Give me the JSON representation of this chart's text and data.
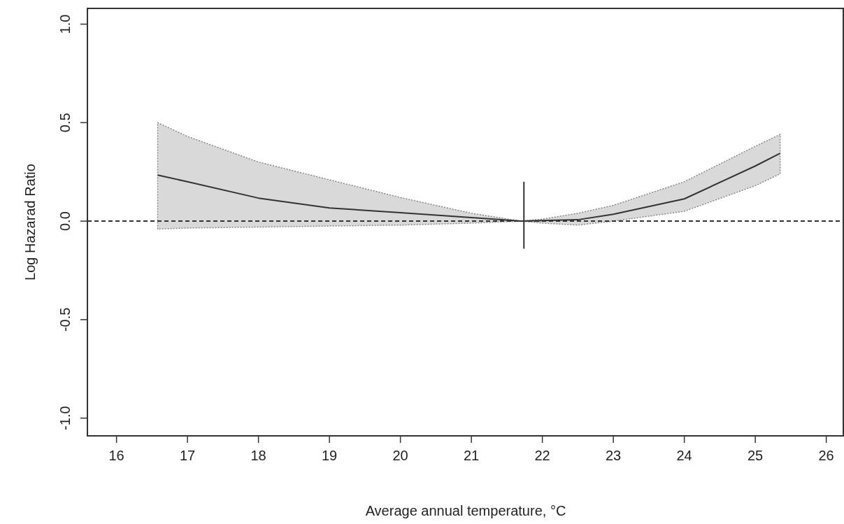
{
  "chart_data": {
    "type": "line",
    "xlabel": "Average annual temperature, °C",
    "ylabel": "Log Hazarad Ratio",
    "xlim": [
      15.59,
      26.24
    ],
    "ylim": [
      -1.09,
      1.08
    ],
    "xticks": [
      16,
      17,
      18,
      19,
      20,
      21,
      22,
      23,
      24,
      25,
      26
    ],
    "yticks": [
      {
        "value": -1,
        "label": "-1.0"
      },
      -0.5,
      {
        "value": 0,
        "label": "0.0"
      },
      0.5,
      {
        "value": 1,
        "label": "1.0"
      }
    ],
    "grid": false,
    "marker": "none",
    "line_style": "solid",
    "ref_lines": [
      {
        "axis": "y",
        "value": 0,
        "line_style": "dashed",
        "color": "#333333"
      }
    ],
    "series": [
      {
        "color": "#333333",
        "x": [
          16.58,
          17,
          18,
          19,
          20,
          21,
          21.7,
          22,
          22.5,
          23,
          24,
          25,
          25.35
        ],
        "values": [
          0.234,
          0.2,
          0.117,
          0.067,
          0.043,
          0.018,
          0,
          0.003,
          0.007,
          0.035,
          0.113,
          0.28,
          0.344
        ],
        "lower": [
          -0.04,
          -0.035,
          -0.03,
          -0.025,
          -0.02,
          -0.01,
          0,
          -0.01,
          -0.02,
          0.0,
          0.05,
          0.18,
          0.24
        ],
        "upper": [
          0.5,
          0.43,
          0.3,
          0.21,
          0.12,
          0.04,
          0,
          0.01,
          0.04,
          0.08,
          0.2,
          0.38,
          0.44
        ]
      },
      {
        "type": "line",
        "color": "#333333",
        "x": [
          21.74,
          21.74
        ],
        "values": [
          -0.14,
          0.2
        ]
      }
    ]
  }
}
